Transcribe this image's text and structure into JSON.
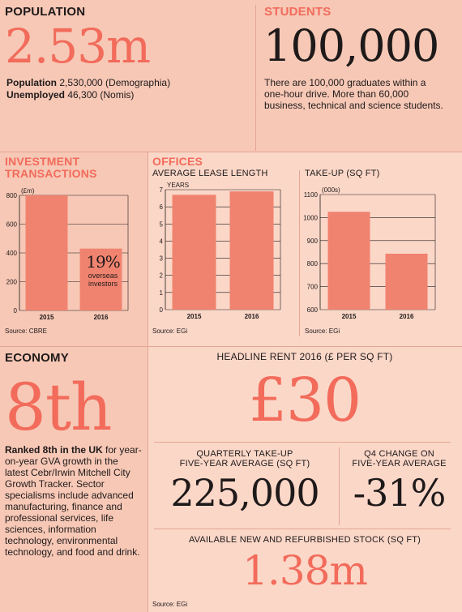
{
  "colors": {
    "accent": "#f26b5b",
    "bar": "#f0836f",
    "bg": "#f7c8b6",
    "panel_light": "#fbd7c8"
  },
  "population": {
    "heading": "POPULATION",
    "big": "2.53m",
    "line1_label": "Population",
    "line1_value": " 2,530,000 (Demographia)",
    "line2_label": "Unemployed",
    "line2_value": " 46,300 (Nomis)"
  },
  "students": {
    "heading": "STUDENTS",
    "big": "100,000",
    "text": "There are 100,000 graduates within a one-hour drive. More than 60,000 business, technical and science students."
  },
  "investment": {
    "heading_line1": "INVESTMENT",
    "heading_line2": "TRANSACTIONS",
    "source": "Source: CBRE",
    "annotation_big": "19%",
    "annotation_line1": "overseas",
    "annotation_line2": "investors"
  },
  "offices": {
    "heading": "OFFICES",
    "lease_heading": "AVERAGE LEASE LENGTH",
    "lease_source": "Source: EGi",
    "takeup_heading": "TAKE-UP (SQ FT)",
    "takeup_source": "Source: EGi"
  },
  "economy": {
    "heading": "ECONOMY",
    "big": "8th",
    "text_bold": "Ranked 8th in the UK",
    "text_rest": " for year-on-year GVA growth in the latest Cebr/Irwin Mitchell City Growth Tracker. Sector specialisms include advanced manufacturing, finance and professional services, life sciences, information technology, environmental technology, and food and drink."
  },
  "rent": {
    "heading": "HEADLINE RENT 2016 (£ PER SQ FT)",
    "big": "£30"
  },
  "quarterly": {
    "heading_line1": "QUARTERLY TAKE-UP",
    "heading_line2": "FIVE-YEAR AVERAGE (SQ FT)",
    "big": "225,000"
  },
  "q4": {
    "heading_line1": "Q4 CHANGE ON",
    "heading_line2": "FIVE-YEAR AVERAGE",
    "big": "-31%"
  },
  "stock": {
    "heading": "AVAILABLE NEW AND REFURBISHED STOCK (SQ FT)",
    "big": "1.38m",
    "source": "Source: EGi"
  },
  "chart_data": [
    {
      "type": "bar",
      "categories": [
        "2015",
        "2016"
      ],
      "values": [
        800,
        430
      ],
      "ylabel": "(£m)",
      "ylim": [
        0,
        800
      ],
      "yticks": [
        0,
        200,
        400,
        600,
        800
      ],
      "grid": true
    },
    {
      "type": "bar",
      "categories": [
        "2015",
        "2016"
      ],
      "values": [
        6.7,
        6.9
      ],
      "ylabel": "YEARS",
      "ylim": [
        0,
        7
      ],
      "yticks": [
        0,
        1,
        2,
        3,
        4,
        5,
        6,
        7
      ],
      "grid": true
    },
    {
      "type": "bar",
      "categories": [
        "2015",
        "2016"
      ],
      "values": [
        1025,
        843
      ],
      "ylabel": "(000s)",
      "ylim": [
        600,
        1100
      ],
      "yticks": [
        600,
        700,
        800,
        900,
        1000,
        1100
      ],
      "grid": true
    }
  ]
}
